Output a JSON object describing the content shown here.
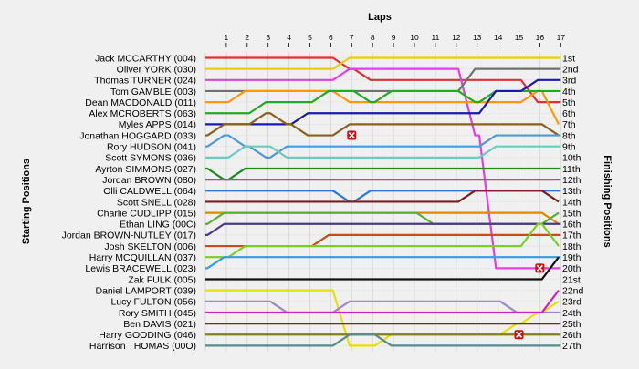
{
  "chart_data": {
    "type": "line",
    "title": "Laps",
    "ylabel_left": "Starting Positions",
    "ylabel_right": "Finishing Positions",
    "laps": [
      1,
      2,
      3,
      4,
      5,
      6,
      7,
      8,
      9,
      10,
      11,
      12,
      13,
      14,
      15,
      16,
      17
    ],
    "start_labels": [
      "Jack MCCARTHY (004)",
      "Oliver YORK (030)",
      "Thomas TURNER (024)",
      "Tom GAMBLE (003)",
      "Dean MACDONALD (011)",
      "Alex MCROBERTS (063)",
      "Myles APPS (014)",
      "Jonathan HOGGARD (033)",
      "Rory HUDSON (041)",
      "Scott SYMONS (036)",
      "Ayrton SIMMONS (027)",
      "Jordan BROWN (080)",
      "Olli CALDWELL (064)",
      "Scott SNELL (028)",
      "Charlie CUDLIPP (015)",
      "Ethan LING (00C)",
      "Jordan BROWN-NUTLEY (017)",
      "Josh SKELTON (006)",
      "Harry MCQUILLAN (037)",
      "Lewis BRACEWELL (023)",
      "Zak FULK (005)",
      "Daniel LAMPORT (039)",
      "Lucy FULTON (056)",
      "Rory SMITH (045)",
      "Ben DAVIS (021)",
      "Harry GOODING (046)",
      "Harrison THOMAS (00O)"
    ],
    "finish_labels": [
      "1st",
      "2nd",
      "3rd",
      "4th",
      "5th",
      "6th",
      "7th",
      "8th",
      "9th",
      "10th",
      "11th",
      "12th",
      "13th",
      "14th",
      "15th",
      "16th",
      "17th",
      "18th",
      "19th",
      "20th",
      "21st",
      "22nd",
      "23rd",
      "24th",
      "25th",
      "26th",
      "27th"
    ],
    "series": [
      {
        "color": "#e03030",
        "positions": [
          1,
          1,
          1,
          1,
          1,
          1,
          1,
          2,
          3,
          3,
          3,
          3,
          3,
          3,
          3,
          3,
          5,
          5
        ]
      },
      {
        "color": "#e8d000",
        "positions": [
          2,
          2,
          2,
          2,
          2,
          2,
          2,
          1,
          1,
          1,
          1,
          1,
          1,
          1,
          1,
          1,
          1,
          1
        ]
      },
      {
        "color": "#e040e0",
        "positions": [
          3,
          3,
          3,
          3,
          3,
          3,
          3,
          2,
          2,
          2,
          2,
          2,
          2,
          8,
          20,
          20,
          20,
          20
        ]
      },
      {
        "color": "#707070",
        "positions": [
          4,
          4,
          4,
          4,
          4,
          4,
          4,
          4,
          4,
          4,
          4,
          4,
          4,
          2,
          2,
          2,
          2,
          2
        ]
      },
      {
        "color": "#ff9900",
        "positions": [
          5,
          5,
          4,
          4,
          4,
          4,
          4,
          5,
          5,
          5,
          5,
          5,
          5,
          5,
          5,
          5,
          4,
          7
        ]
      },
      {
        "color": "#22aa22",
        "positions": [
          6,
          6,
          6,
          5,
          5,
          5,
          4,
          4,
          5,
          4,
          4,
          4,
          4,
          5,
          4,
          4,
          4,
          4
        ]
      },
      {
        "color": "#1a1ab0",
        "positions": [
          7,
          7,
          7,
          7,
          7,
          6,
          6,
          6,
          6,
          6,
          6,
          6,
          6,
          6,
          4,
          4,
          3,
          3
        ]
      },
      {
        "color": "#8a6020",
        "positions": [
          8,
          7,
          7,
          6,
          7,
          8,
          8,
          7,
          7,
          7,
          7,
          7,
          7,
          7,
          7,
          7,
          7,
          8
        ]
      },
      {
        "color": "#4e9ad8",
        "positions": [
          9,
          8,
          9,
          10,
          9,
          9,
          9,
          9,
          9,
          9,
          9,
          9,
          9,
          9,
          8,
          8,
          8,
          8
        ]
      },
      {
        "color": "#70c8c0",
        "positions": [
          10,
          10,
          9,
          9,
          10,
          10,
          10,
          10,
          10,
          10,
          10,
          10,
          10,
          10,
          9,
          9,
          9,
          9
        ]
      },
      {
        "color": "#1e8a1e",
        "positions": [
          11,
          12,
          11,
          11,
          11,
          11,
          11,
          11,
          11,
          11,
          11,
          11,
          11,
          11,
          11,
          11,
          11,
          11
        ]
      },
      {
        "color": "#8a5a9a",
        "positions": [
          12,
          12,
          12,
          12,
          12,
          12,
          12,
          12,
          12,
          12,
          12,
          12,
          12,
          12,
          12,
          12,
          12,
          12
        ]
      },
      {
        "color": "#2a7ad0",
        "positions": [
          13,
          13,
          13,
          13,
          13,
          13,
          13,
          14,
          13,
          13,
          13,
          13,
          13,
          13,
          13,
          13,
          13,
          13
        ]
      },
      {
        "color": "#7a2020",
        "positions": [
          14,
          14,
          14,
          14,
          14,
          14,
          14,
          14,
          14,
          14,
          14,
          14,
          14,
          13,
          13,
          13,
          13,
          14
        ]
      },
      {
        "color": "#e08a00",
        "positions": [
          15,
          15,
          15,
          15,
          15,
          15,
          15,
          15,
          15,
          15,
          15,
          15,
          15,
          15,
          15,
          15,
          15,
          16
        ]
      },
      {
        "color": "#5ab030",
        "positions": [
          16,
          15,
          15,
          15,
          15,
          15,
          15,
          15,
          15,
          15,
          15,
          16,
          16,
          16,
          16,
          16,
          16,
          15
        ]
      },
      {
        "color": "#4a3a88",
        "positions": [
          17,
          16,
          16,
          16,
          16,
          16,
          16,
          16,
          16,
          16,
          16,
          16,
          16,
          16,
          16,
          16,
          16,
          16
        ]
      },
      {
        "color": "#d04820",
        "positions": [
          18,
          18,
          18,
          18,
          18,
          18,
          17,
          17,
          17,
          17,
          17,
          17,
          17,
          17,
          17,
          17,
          17,
          17
        ]
      },
      {
        "color": "#7ad020",
        "positions": [
          19,
          19,
          18,
          18,
          18,
          18,
          18,
          18,
          18,
          18,
          18,
          18,
          18,
          18,
          18,
          18,
          16,
          18
        ]
      },
      {
        "color": "#3a9ae0",
        "positions": [
          20,
          19,
          19,
          19,
          19,
          19,
          19,
          19,
          19,
          19,
          19,
          19,
          19,
          19,
          19,
          19,
          19,
          19
        ]
      },
      {
        "color": "#111111",
        "positions": [
          21,
          21,
          21,
          21,
          21,
          21,
          21,
          21,
          21,
          21,
          21,
          21,
          21,
          21,
          21,
          21,
          21,
          19
        ]
      },
      {
        "color": "#e8e000",
        "positions": [
          22,
          22,
          22,
          22,
          22,
          22,
          22,
          27,
          27,
          26,
          26,
          26,
          26,
          26,
          26,
          25,
          24,
          23
        ]
      },
      {
        "color": "#9a88d0",
        "positions": [
          23,
          23,
          23,
          23,
          24,
          24,
          24,
          23,
          23,
          23,
          23,
          23,
          23,
          23,
          23,
          24,
          24,
          24
        ]
      },
      {
        "color": "#cc22cc",
        "positions": [
          24,
          24,
          24,
          24,
          24,
          24,
          24,
          24,
          24,
          24,
          24,
          24,
          24,
          24,
          24,
          24,
          24,
          22
        ]
      },
      {
        "color": "#6a2a2a",
        "positions": [
          25,
          25,
          25,
          25,
          25,
          25,
          25,
          25,
          25,
          25,
          25,
          25,
          25,
          25,
          25,
          25,
          25,
          25
        ]
      },
      {
        "color": "#808020",
        "positions": [
          26,
          26,
          26,
          26,
          26,
          26,
          26,
          26,
          26,
          26,
          26,
          26,
          26,
          26,
          26,
          26,
          26,
          26
        ]
      },
      {
        "color": "#5a8a8a",
        "positions": [
          27,
          27,
          27,
          27,
          27,
          27,
          27,
          26,
          26,
          27,
          27,
          27,
          27,
          27,
          27,
          27,
          27,
          27
        ]
      }
    ],
    "retired": [
      {
        "lap": 7,
        "position": 8
      },
      {
        "lap": 15,
        "position": 26
      },
      {
        "lap": 16,
        "position": 20
      }
    ]
  }
}
